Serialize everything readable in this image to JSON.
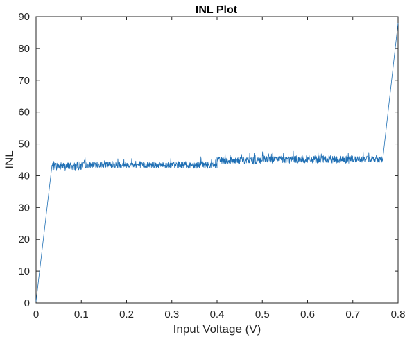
{
  "chart_data": {
    "type": "line",
    "title": "INL Plot",
    "xlabel": "Input Voltage (V)",
    "ylabel": "INL",
    "xlim": [
      0,
      0.8
    ],
    "ylim": [
      0,
      90
    ],
    "xticks": [
      "0",
      "0.1",
      "0.2",
      "0.3",
      "0.4",
      "0.5",
      "0.6",
      "0.7",
      "0.8"
    ],
    "yticks": [
      "0",
      "10",
      "20",
      "30",
      "40",
      "50",
      "60",
      "70",
      "80",
      "90"
    ],
    "grid": false,
    "line_color": "#1f6fb4",
    "series": [
      {
        "name": "",
        "segments": [
          {
            "x0": 0.0,
            "x1": 0.035,
            "base": 0.5,
            "end": 43,
            "noise": 0
          },
          {
            "x0": 0.035,
            "x1": 0.1,
            "base": 43.0,
            "noise": 1.3
          },
          {
            "x0": 0.1,
            "x1": 0.3,
            "base": 43.4,
            "noise": 1.0
          },
          {
            "x0": 0.3,
            "x1": 0.4,
            "base": 43.4,
            "noise": 1.1
          },
          {
            "x0": 0.4,
            "x1": 0.5,
            "base": 44.8,
            "noise": 1.2
          },
          {
            "x0": 0.5,
            "x1": 0.7,
            "base": 45.1,
            "noise": 1.2
          },
          {
            "x0": 0.7,
            "x1": 0.766,
            "base": 45.2,
            "noise": 1.0
          },
          {
            "x0": 0.766,
            "x1": 0.8,
            "base": 45.0,
            "end": 88,
            "noise": 0
          }
        ]
      }
    ]
  }
}
